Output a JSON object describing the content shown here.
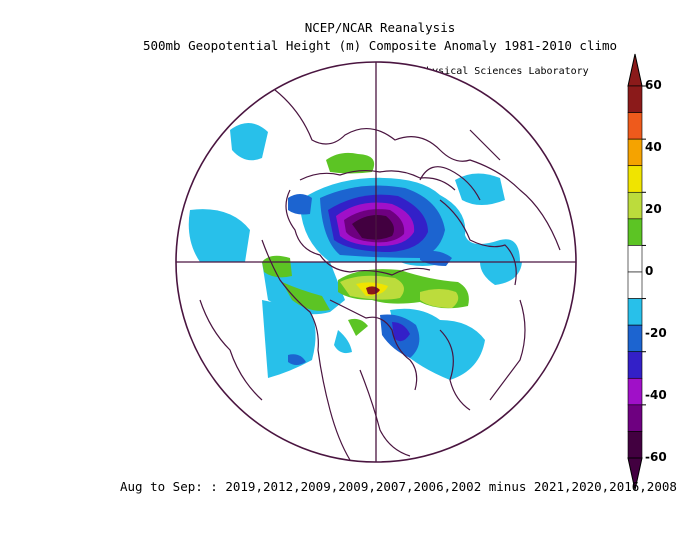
{
  "title": "NCEP/NCAR Reanalysis",
  "subtitle": "500mb Geopotential Height (m) Composite Anomaly 1981-2010 climo",
  "credit": "NOAA Physical Sciences Laboratory",
  "footer": "Aug to Sep: : 2019,2012,2009,2009,2007,2006,2002 minus 2021,2020,2016,2008",
  "colorbar": {
    "ticks": [
      "60",
      "40",
      "20",
      "0",
      "-20",
      "-40",
      "-60"
    ],
    "colors": [
      "#8b1a1a",
      "#ee5a1c",
      "#f5a300",
      "#f0e400",
      "#bcdc3c",
      "#5cc424",
      "#ffffff",
      "#ffffff",
      "#28c0ea",
      "#1c64d0",
      "#3320c8",
      "#a010c8",
      "#6e0080",
      "#420040"
    ]
  },
  "map": {
    "projection": "north-polar-stereographic",
    "field": "500mb geopotential height anomaly",
    "features": [
      "strong negative anomaly over central Arctic (below -60 m)",
      "positive anomaly over Scandinavia/Western Europe",
      "negative anomalies over Greenland/North Atlantic and Barents region",
      "weak positive anomaly over Siberia/Alaska"
    ]
  }
}
